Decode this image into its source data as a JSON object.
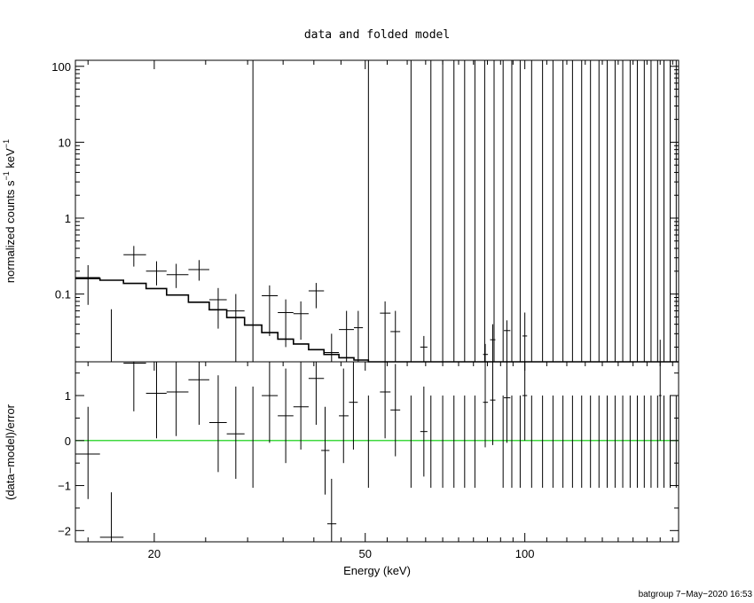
{
  "chart_data": [
    {
      "panel": "top",
      "type": "step-with-errorbars",
      "title": "data and folded model",
      "xlabel": "",
      "ylabel": "normalized counts s",
      "ylabel_sup1": "−1",
      "ylabel_mid": " keV",
      "ylabel_sup2": "−1",
      "xscale": "log",
      "yscale": "log",
      "xlim": [
        14.2,
        195
      ],
      "ylim": [
        0.0128,
        120
      ],
      "yticks": [
        {
          "value": 0.1,
          "label": "0.1"
        },
        {
          "value": 1,
          "label": "1"
        },
        {
          "value": 10,
          "label": "10"
        },
        {
          "value": 100,
          "label": "100"
        }
      ],
      "model_step": {
        "edges": [
          14.2,
          15.8,
          17.5,
          19.3,
          21.1,
          23.2,
          25.4,
          27.4,
          29.6,
          31.9,
          34.2,
          36.6,
          39.1,
          41.8,
          44.6,
          47.6,
          50.7,
          55,
          60,
          65,
          70,
          75,
          80,
          85,
          90,
          95,
          100,
          110,
          120,
          130,
          140,
          150,
          160,
          170,
          180,
          195
        ],
        "values": [
          0.16,
          0.152,
          0.138,
          0.118,
          0.097,
          0.078,
          0.062,
          0.049,
          0.039,
          0.031,
          0.0255,
          0.022,
          0.0185,
          0.016,
          0.0145,
          0.0135,
          0.0128,
          0.0128,
          0.0128,
          0.0128,
          0.0128,
          0.0128,
          0.0128,
          0.0128,
          0.0128,
          0.0128,
          0.0128,
          0.0128,
          0.0128,
          0.0128,
          0.0128,
          0.0128,
          0.0128,
          0.0128,
          0.0128
        ]
      },
      "points": [
        {
          "x": 15.0,
          "xerr": [
            14.2,
            15.8
          ],
          "y": 0.165,
          "ylo": 0.072,
          "yhi": 0.24
        },
        {
          "x": 16.6,
          "xerr": [
            16.6,
            16.6
          ],
          "y": 0.0128,
          "ylo": 0.0128,
          "yhi": 0.063
        },
        {
          "x": 18.3,
          "xerr": [
            17.5,
            19.3
          ],
          "y": 0.33,
          "ylo": 0.23,
          "yhi": 0.43
        },
        {
          "x": 20.2,
          "xerr": [
            19.3,
            21.1
          ],
          "y": 0.2,
          "ylo": 0.13,
          "yhi": 0.27
        },
        {
          "x": 22.0,
          "xerr": [
            21.1,
            23.2
          ],
          "y": 0.18,
          "ylo": 0.12,
          "yhi": 0.25
        },
        {
          "x": 24.3,
          "xerr": [
            23.2,
            25.4
          ],
          "y": 0.21,
          "ylo": 0.15,
          "yhi": 0.28
        },
        {
          "x": 26.4,
          "xerr": [
            25.4,
            27.4
          ],
          "y": 0.084,
          "ylo": 0.035,
          "yhi": 0.12
        },
        {
          "x": 28.5,
          "xerr": [
            27.4,
            29.6
          ],
          "y": 0.06,
          "ylo": 0.0128,
          "yhi": 0.1
        },
        {
          "x": 30.7,
          "xerr": [
            30.7,
            30.7
          ],
          "y": 0.0128,
          "ylo": 0.0128,
          "yhi": 120
        },
        {
          "x": 33.0,
          "xerr": [
            31.9,
            34.2
          ],
          "y": 0.095,
          "ylo": 0.028,
          "yhi": 0.13
        },
        {
          "x": 35.4,
          "xerr": [
            34.2,
            36.6
          ],
          "y": 0.057,
          "ylo": 0.02,
          "yhi": 0.085
        },
        {
          "x": 37.8,
          "xerr": [
            36.6,
            39.1
          ],
          "y": 0.055,
          "ylo": 0.025,
          "yhi": 0.08
        },
        {
          "x": 40.4,
          "xerr": [
            39.1,
            41.8
          ],
          "y": 0.11,
          "ylo": 0.065,
          "yhi": 0.14
        },
        {
          "x": 43.2,
          "xerr": [
            41.8,
            44.6
          ],
          "y": 0.017,
          "ylo": 0.0128,
          "yhi": 0.03
        },
        {
          "x": 46.1,
          "xerr": [
            44.6,
            47.6
          ],
          "y": 0.034,
          "ylo": 0.0128,
          "yhi": 0.06
        },
        {
          "x": 48.5,
          "xerr": [
            47.6,
            49.5
          ],
          "y": 0.036,
          "ylo": 0.0128,
          "yhi": 0.06
        },
        {
          "x": 50.7,
          "xerr": [
            50.7,
            50.7
          ],
          "y": 0.0128,
          "ylo": 0.0128,
          "yhi": 120
        },
        {
          "x": 54.5,
          "xerr": [
            53.3,
            55.8
          ],
          "y": 0.056,
          "ylo": 0.0128,
          "yhi": 0.08
        },
        {
          "x": 57.0,
          "xerr": [
            55.8,
            58.2
          ],
          "y": 0.032,
          "ylo": 0.0128,
          "yhi": 0.06
        },
        {
          "x": 61.0,
          "xerr": [
            61.0,
            61.0
          ],
          "y": 0.0128,
          "ylo": 0.0128,
          "yhi": 120
        },
        {
          "x": 64.5,
          "xerr": [
            63.5,
            65.5
          ],
          "y": 0.02,
          "ylo": 0.0128,
          "yhi": 0.028
        },
        {
          "x": 84.2,
          "xerr": [
            83.4,
            85.2
          ],
          "y": 0.016,
          "ylo": 0.0128,
          "yhi": 0.022
        },
        {
          "x": 87.0,
          "xerr": [
            86.0,
            88.0
          ],
          "y": 0.025,
          "ylo": 0.0128,
          "yhi": 0.04
        },
        {
          "x": 92.5,
          "xerr": [
            91.3,
            93.9
          ],
          "y": 0.033,
          "ylo": 0.0128,
          "yhi": 0.045
        },
        {
          "x": 100.0,
          "xerr": [
            99.0,
            101.0
          ],
          "y": 0.028,
          "ylo": 0.0128,
          "yhi": 0.057
        },
        {
          "x": 180.0,
          "xerr": [
            179.0,
            181.0
          ],
          "y": 0.0128,
          "ylo": 0.0128,
          "yhi": 0.025
        }
      ],
      "upper_limit_lines_x": [
        66.5,
        70,
        73.5,
        77,
        80.5,
        84,
        87.5,
        91,
        94.5,
        98,
        103,
        108,
        113,
        118,
        123,
        128,
        133,
        138,
        143,
        148,
        153,
        158,
        163,
        168,
        173,
        178,
        183,
        188,
        193
      ]
    },
    {
      "panel": "bottom",
      "type": "residuals-with-errorbars",
      "xlabel": "Energy (keV)",
      "ylabel": "(data−model)/error",
      "xscale": "log",
      "xlim": [
        14.2,
        195
      ],
      "ylim": [
        -2.25,
        1.75
      ],
      "xticks": [
        {
          "value": 20,
          "label": "20"
        },
        {
          "value": 50,
          "label": "50"
        },
        {
          "value": 100,
          "label": "100"
        }
      ],
      "yticks": [
        {
          "value": -2,
          "label": "−2"
        },
        {
          "value": -1,
          "label": "−1"
        },
        {
          "value": 0,
          "label": "0"
        },
        {
          "value": 1,
          "label": "1"
        }
      ],
      "zero_line_color": "#00cc00",
      "points": [
        {
          "x": 15.0,
          "xerr": [
            14.2,
            15.8
          ],
          "y": -0.3,
          "ylo": -1.3,
          "yhi": 0.75
        },
        {
          "x": 16.6,
          "xerr": [
            15.8,
            17.5
          ],
          "y": -2.15,
          "ylo": -2.25,
          "yhi": -1.15
        },
        {
          "x": 18.3,
          "xerr": [
            17.5,
            19.3
          ],
          "y": 1.72,
          "ylo": 0.65,
          "yhi": 1.75
        },
        {
          "x": 20.2,
          "xerr": [
            19.3,
            21.1
          ],
          "y": 1.05,
          "ylo": 0.05,
          "yhi": 1.75
        },
        {
          "x": 22.0,
          "xerr": [
            21.1,
            23.2
          ],
          "y": 1.08,
          "ylo": 0.1,
          "yhi": 1.75
        },
        {
          "x": 24.3,
          "xerr": [
            23.2,
            25.4
          ],
          "y": 1.35,
          "ylo": 0.35,
          "yhi": 1.75
        },
        {
          "x": 26.4,
          "xerr": [
            25.4,
            27.4
          ],
          "y": 0.4,
          "ylo": -0.7,
          "yhi": 1.45
        },
        {
          "x": 28.5,
          "xerr": [
            27.4,
            29.6
          ],
          "y": 0.15,
          "ylo": -0.85,
          "yhi": 1.2
        },
        {
          "x": 30.7,
          "xerr": [
            30.7,
            30.7
          ],
          "y": 0.2,
          "ylo": -1.05,
          "yhi": 1.2
        },
        {
          "x": 33.0,
          "xerr": [
            31.9,
            34.2
          ],
          "y": 1.0,
          "ylo": -0.05,
          "yhi": 1.75
        },
        {
          "x": 35.4,
          "xerr": [
            34.2,
            36.6
          ],
          "y": 0.55,
          "ylo": -0.5,
          "yhi": 1.6
        },
        {
          "x": 37.8,
          "xerr": [
            36.6,
            39.1
          ],
          "y": 0.75,
          "ylo": -0.2,
          "yhi": 1.75
        },
        {
          "x": 40.4,
          "xerr": [
            39.1,
            41.8
          ],
          "y": 1.38,
          "ylo": 0.35,
          "yhi": 1.75
        },
        {
          "x": 42.0,
          "xerr": [
            41.3,
            42.8
          ],
          "y": -0.22,
          "ylo": -1.2,
          "yhi": 0.75
        },
        {
          "x": 43.2,
          "xerr": [
            42.4,
            44.1
          ],
          "y": -1.85,
          "ylo": -2.25,
          "yhi": -0.85
        },
        {
          "x": 45.5,
          "xerr": [
            44.6,
            46.5
          ],
          "y": 0.55,
          "ylo": -0.5,
          "yhi": 1.6
        },
        {
          "x": 47.5,
          "xerr": [
            46.6,
            48.4
          ],
          "y": 0.85,
          "ylo": -0.2,
          "yhi": 1.75
        },
        {
          "x": 54.5,
          "xerr": [
            53.3,
            55.8
          ],
          "y": 1.08,
          "ylo": 0.05,
          "yhi": 1.75
        },
        {
          "x": 57.0,
          "xerr": [
            55.8,
            58.2
          ],
          "y": 0.68,
          "ylo": -0.35,
          "yhi": 1.7
        },
        {
          "x": 64.5,
          "xerr": [
            63.5,
            65.5
          ],
          "y": 0.2,
          "ylo": -0.8,
          "yhi": 1.2
        },
        {
          "x": 84.2,
          "xerr": [
            83.4,
            85.2
          ],
          "y": 0.85,
          "ylo": -0.15,
          "yhi": 1.75
        },
        {
          "x": 87.0,
          "xerr": [
            86.0,
            88.0
          ],
          "y": 0.9,
          "ylo": -0.1,
          "yhi": 1.75
        },
        {
          "x": 92.5,
          "xerr": [
            91.3,
            93.9
          ],
          "y": 0.95,
          "ylo": -0.05,
          "yhi": 1.75
        },
        {
          "x": 100.0,
          "xerr": [
            99.0,
            101.0
          ],
          "y": 1.0,
          "ylo": 0.0,
          "yhi": 1.75
        },
        {
          "x": 180.0,
          "xerr": [
            179.0,
            181.0
          ],
          "y": 1.0,
          "ylo": 0.0,
          "yhi": 1.75
        }
      ],
      "upper_limit_lines": {
        "x": [
          50.7,
          61,
          66.5,
          70,
          73.5,
          77,
          80.5,
          91,
          94.5,
          98,
          103,
          108,
          113,
          118,
          123,
          128,
          133,
          138,
          143,
          148,
          153,
          158,
          163,
          168,
          173,
          178,
          183,
          188,
          193
        ],
        "ylo": -1.05,
        "yhi": 1.0
      }
    }
  ],
  "footer": {
    "label": "batgroup  7−May−2020 16:53"
  }
}
